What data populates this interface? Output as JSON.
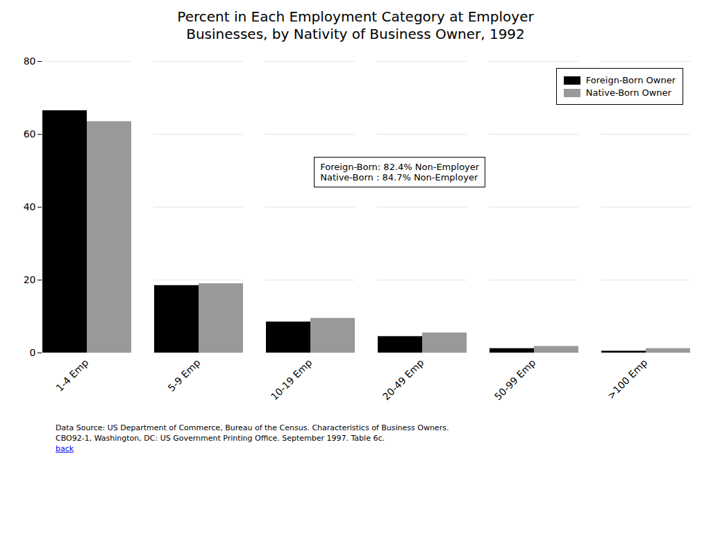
{
  "chart_data": {
    "type": "bar",
    "title": "Percent in Each Employment Category at Employer\nBusinesses, by Nativity of Business Owner, 1992",
    "categories": [
      "1-4 Emp",
      "5-9 Emp",
      "10-19 Emp",
      "20-49 Emp",
      "50-99 Emp",
      ">100 Emp"
    ],
    "series": [
      {
        "name": "Foreign-Born Owner",
        "color": "#000000",
        "values": [
          66.5,
          18.5,
          8.5,
          4.5,
          1.2,
          0.5
        ]
      },
      {
        "name": "Native-Born Owner",
        "color": "#999999",
        "values": [
          63.5,
          19.0,
          9.5,
          5.5,
          1.8,
          1.2
        ]
      }
    ],
    "ylim": [
      0,
      80
    ],
    "yticks": [
      0,
      20,
      40,
      60,
      80
    ],
    "grid": true,
    "legend": "upper right",
    "annotation": "Foreign-Born: 82.4% Non-Employer\nNative-Born : 84.7% Non-Employer",
    "footnotes": [
      "Data Source: US Department of Commerce, Bureau of the Census. Characteristics of Business Owners.",
      "CBO92-1, Washington, DC: US Government Printing Office.  September 1997.  Table 6c.",
      "back"
    ]
  }
}
